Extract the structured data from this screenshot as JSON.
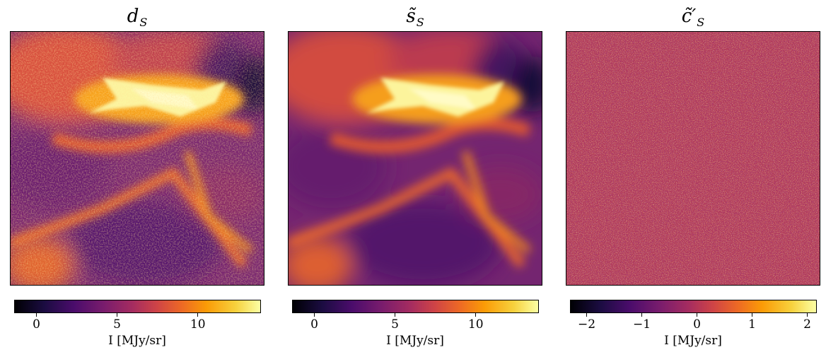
{
  "panels": [
    {
      "title": {
        "base": "d",
        "sub": "S"
      },
      "image": "dust-emission-map-original",
      "colorbar": {
        "cmap": "inferno",
        "vmin": -1.4,
        "vmax": 13.8,
        "ticks": [
          {
            "v": 0,
            "t": "0"
          },
          {
            "v": 5,
            "t": "5"
          },
          {
            "v": 10,
            "t": "10"
          }
        ],
        "label": "I [MJy/sr]"
      }
    },
    {
      "title": {
        "base": "s̃",
        "sub": "S"
      },
      "image": "dust-emission-map-denoised",
      "colorbar": {
        "cmap": "inferno",
        "vmin": -1.4,
        "vmax": 13.8,
        "ticks": [
          {
            "v": 0,
            "t": "0"
          },
          {
            "v": 5,
            "t": "5"
          },
          {
            "v": 10,
            "t": "10"
          }
        ],
        "label": "I [MJy/sr]"
      }
    },
    {
      "title": {
        "base": "c̃′",
        "sub": "S"
      },
      "image": "residual-noise-map",
      "colorbar": {
        "cmap": "inferno",
        "vmin": -2.25,
        "vmax": 2.2,
        "ticks": [
          {
            "v": -2,
            "t": "−2"
          },
          {
            "v": -1,
            "t": "−1"
          },
          {
            "v": 0,
            "t": "0"
          },
          {
            "v": 1,
            "t": "1"
          },
          {
            "v": 2,
            "t": "2"
          }
        ],
        "label": "I [MJy/sr]"
      }
    }
  ]
}
